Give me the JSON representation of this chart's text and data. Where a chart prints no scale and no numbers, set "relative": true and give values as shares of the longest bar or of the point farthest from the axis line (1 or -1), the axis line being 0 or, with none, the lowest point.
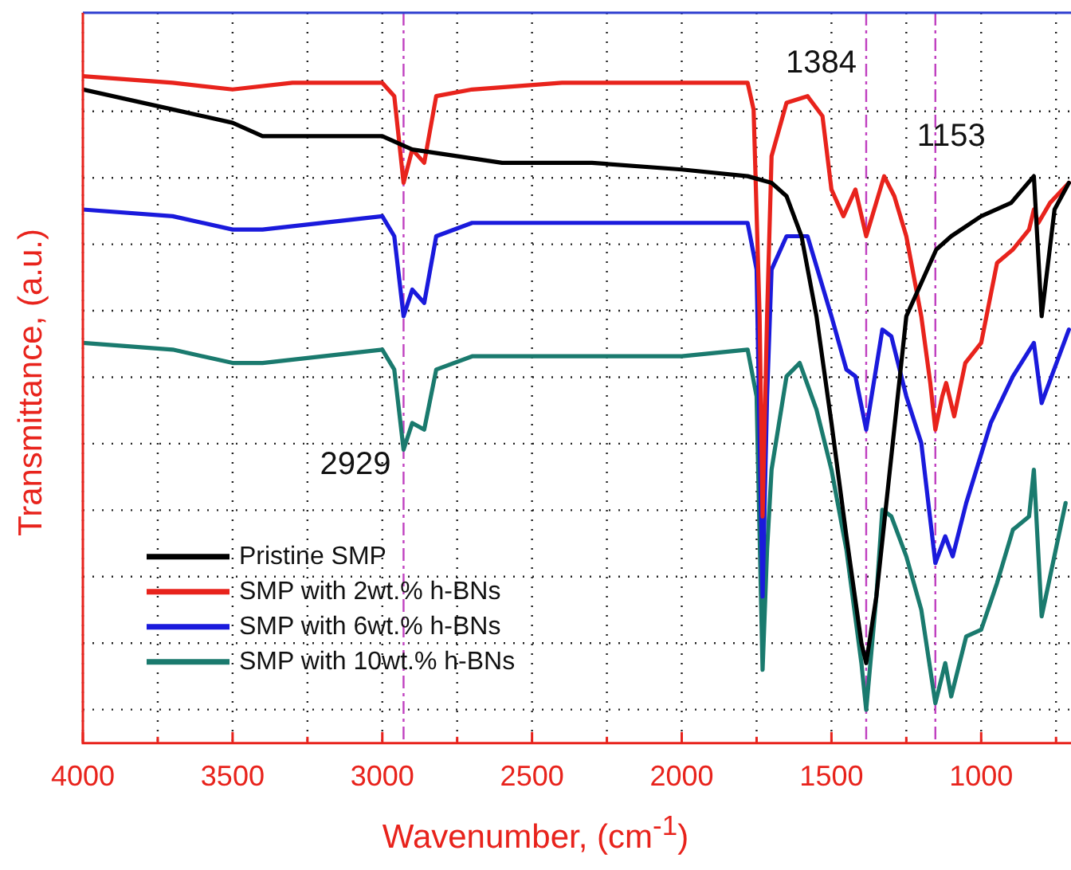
{
  "chart_data": {
    "type": "line",
    "xlabel": "Wavenumber, (cm$^{-1}$)",
    "ylabel": "Transmittance, (a.u.)",
    "relative": true,
    "xlim": [
      4000,
      700
    ],
    "xticks": [
      4000,
      {
        "value": 3750,
        "label": null
      },
      3500,
      {
        "value": 3250,
        "label": null
      },
      3000,
      {
        "value": 2750,
        "label": null
      },
      2500,
      {
        "value": 2250,
        "label": null
      },
      2000,
      {
        "value": 1750,
        "label": null
      },
      1500,
      {
        "value": 1250,
        "label": null
      },
      1000,
      {
        "value": 750,
        "label": null
      }
    ],
    "grid": true,
    "legend": "bottom left",
    "line_style": "solid",
    "marker": "none",
    "ref_lines": [
      {
        "axis": "x",
        "value": 2929,
        "label": "2929",
        "color": "#c040c0",
        "line_style": "dashdot"
      },
      {
        "axis": "x",
        "value": 1384,
        "label": "1384",
        "color": "#c040c0",
        "line_style": "dashdot"
      },
      {
        "axis": "x",
        "value": 1153,
        "label": "1153",
        "color": "#c040c0",
        "line_style": "dashdot"
      }
    ],
    "series": [
      {
        "name": "Pristine SMP",
        "color": "#000000",
        "x": [
          4000,
          3700,
          3500,
          3400,
          3000,
          2900,
          2600,
          2300,
          2000,
          1780,
          1700,
          1650,
          1600,
          1550,
          1500,
          1450,
          1400,
          1384,
          1350,
          1300,
          1250,
          1200,
          1150,
          1100,
          1000,
          900,
          824,
          798,
          755,
          707
        ],
        "values": [
          0.98,
          0.95,
          0.93,
          0.91,
          0.91,
          0.89,
          0.87,
          0.87,
          0.86,
          0.85,
          0.84,
          0.82,
          0.76,
          0.64,
          0.48,
          0.31,
          0.15,
          0.12,
          0.22,
          0.43,
          0.64,
          0.69,
          0.74,
          0.76,
          0.79,
          0.81,
          0.85,
          0.64,
          0.8,
          0.84
        ]
      },
      {
        "name": "SMP with 2wt.% h-BNs",
        "color": "#e8231c",
        "x": [
          4000,
          3700,
          3500,
          3300,
          3000,
          2960,
          2929,
          2900,
          2860,
          2820,
          2700,
          2400,
          2000,
          1780,
          1760,
          1740,
          1730,
          1715,
          1700,
          1650,
          1580,
          1530,
          1500,
          1460,
          1420,
          1384,
          1324,
          1290,
          1250,
          1200,
          1170,
          1153,
          1130,
          1117,
          1090,
          1053,
          1000,
          947,
          894,
          840,
          824,
          809,
          770,
          707
        ],
        "values": [
          1.0,
          0.99,
          0.98,
          0.99,
          0.99,
          0.97,
          0.84,
          0.89,
          0.87,
          0.97,
          0.98,
          0.99,
          0.99,
          0.99,
          0.95,
          0.64,
          0.34,
          0.64,
          0.88,
          0.96,
          0.97,
          0.94,
          0.83,
          0.79,
          0.83,
          0.76,
          0.85,
          0.82,
          0.76,
          0.64,
          0.54,
          0.47,
          0.52,
          0.54,
          0.49,
          0.57,
          0.6,
          0.72,
          0.74,
          0.77,
          0.8,
          0.78,
          0.81,
          0.84
        ]
      },
      {
        "name": "SMP with 6wt.% h-BNs",
        "color": "#1a1adc",
        "x": [
          4000,
          3700,
          3500,
          3400,
          3000,
          2960,
          2929,
          2900,
          2860,
          2820,
          2700,
          2000,
          1780,
          1750,
          1730,
          1715,
          1700,
          1650,
          1580,
          1500,
          1450,
          1420,
          1384,
          1330,
          1300,
          1250,
          1200,
          1153,
          1120,
          1095,
          1050,
          968,
          894,
          824,
          798,
          707
        ],
        "values": [
          0.8,
          0.79,
          0.77,
          0.77,
          0.79,
          0.76,
          0.64,
          0.68,
          0.66,
          0.76,
          0.78,
          0.78,
          0.78,
          0.71,
          0.22,
          0.52,
          0.71,
          0.76,
          0.76,
          0.64,
          0.56,
          0.55,
          0.47,
          0.62,
          0.61,
          0.52,
          0.45,
          0.27,
          0.31,
          0.28,
          0.36,
          0.48,
          0.55,
          0.6,
          0.51,
          0.62
        ]
      },
      {
        "name": "SMP with 10wt.% h-BNs",
        "color": "#1a7a6e",
        "x": [
          4000,
          3700,
          3500,
          3400,
          3000,
          2960,
          2929,
          2900,
          2860,
          2820,
          2700,
          2000,
          1780,
          1750,
          1730,
          1715,
          1700,
          1650,
          1606,
          1550,
          1500,
          1450,
          1400,
          1384,
          1350,
          1330,
          1300,
          1250,
          1200,
          1153,
          1120,
          1100,
          1050,
          1000,
          947,
          894,
          840,
          824,
          798,
          718
        ],
        "values": [
          0.6,
          0.59,
          0.57,
          0.57,
          0.59,
          0.56,
          0.44,
          0.48,
          0.47,
          0.56,
          0.58,
          0.58,
          0.59,
          0.52,
          0.11,
          0.29,
          0.41,
          0.55,
          0.57,
          0.5,
          0.41,
          0.29,
          0.12,
          0.05,
          0.22,
          0.35,
          0.34,
          0.28,
          0.2,
          0.06,
          0.12,
          0.07,
          0.16,
          0.17,
          0.24,
          0.32,
          0.34,
          0.41,
          0.19,
          0.36
        ]
      }
    ]
  }
}
